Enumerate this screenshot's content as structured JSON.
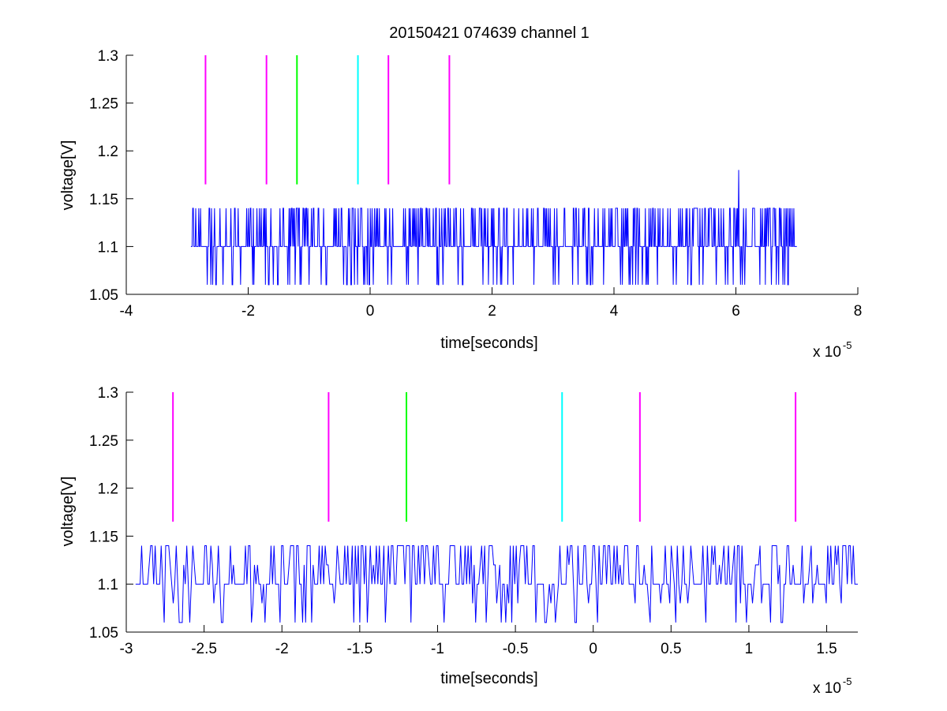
{
  "figure_title": "20150421 074639 channel 1",
  "chart_data": [
    {
      "type": "line",
      "title": "20150421 074639 channel 1",
      "xlabel": "time[seconds]",
      "ylabel": "voltage[V]",
      "x_scale_label": "x 10",
      "x_scale_exponent": "-5",
      "xlim": [
        -4,
        8
      ],
      "ylim": [
        1.05,
        1.3
      ],
      "x_scale_factor": 1e-05,
      "xticks": [
        -4,
        -2,
        0,
        2,
        4,
        6,
        8
      ],
      "xtick_labels": [
        "-4",
        "-2",
        "0",
        "2",
        "4",
        "6",
        "8"
      ],
      "yticks": [
        1.05,
        1.1,
        1.15,
        1.2,
        1.25,
        1.3
      ],
      "ytick_labels": [
        "1.05",
        "1.1",
        "1.15",
        "1.2",
        "1.25",
        "1.3"
      ],
      "grid": false,
      "legend": "none",
      "signal": {
        "name": "voltage",
        "color": "#0000ff",
        "x_start": -2.94,
        "x_end": 7.0,
        "baseline": 1.1,
        "levels": [
          1.06,
          1.1,
          1.14
        ],
        "spike": {
          "x": 6.05,
          "y": 1.18
        }
      },
      "markers": [
        {
          "x": -2.7,
          "y0": 1.165,
          "y1": 1.3,
          "color": "#ff00ff"
        },
        {
          "x": -1.7,
          "y0": 1.165,
          "y1": 1.3,
          "color": "#ff00ff"
        },
        {
          "x": -1.2,
          "y0": 1.165,
          "y1": 1.3,
          "color": "#00ff00"
        },
        {
          "x": -0.2,
          "y0": 1.165,
          "y1": 1.3,
          "color": "#00ffff"
        },
        {
          "x": 0.3,
          "y0": 1.165,
          "y1": 1.3,
          "color": "#ff00ff"
        },
        {
          "x": 1.3,
          "y0": 1.165,
          "y1": 1.3,
          "color": "#ff00ff"
        }
      ]
    },
    {
      "type": "line",
      "title": "",
      "xlabel": "time[seconds]",
      "ylabel": "voltage[V]",
      "x_scale_label": "x 10",
      "x_scale_exponent": "-5",
      "xlim": [
        -3.0,
        1.7
      ],
      "ylim": [
        1.05,
        1.3
      ],
      "x_scale_factor": 1e-05,
      "xticks": [
        -3,
        -2.5,
        -2,
        -1.5,
        -1,
        -0.5,
        0,
        0.5,
        1,
        1.5
      ],
      "xtick_labels": [
        "-3",
        "-2.5",
        "-2",
        "-1.5",
        "-1",
        "-0.5",
        "0",
        "0.5",
        "1",
        "1.5"
      ],
      "yticks": [
        1.05,
        1.1,
        1.15,
        1.2,
        1.25,
        1.3
      ],
      "ytick_labels": [
        "1.05",
        "1.1",
        "1.15",
        "1.2",
        "1.25",
        "1.3"
      ],
      "grid": false,
      "legend": "none",
      "signal": {
        "name": "voltage",
        "color": "#0000ff",
        "x_start": -2.94,
        "x_end": 1.7,
        "baseline": 1.1,
        "levels": [
          1.06,
          1.08,
          1.1,
          1.12,
          1.14
        ]
      },
      "markers": [
        {
          "x": -2.7,
          "y0": 1.165,
          "y1": 1.3,
          "color": "#ff00ff"
        },
        {
          "x": -1.7,
          "y0": 1.165,
          "y1": 1.3,
          "color": "#ff00ff"
        },
        {
          "x": -1.2,
          "y0": 1.165,
          "y1": 1.3,
          "color": "#00ff00"
        },
        {
          "x": -0.2,
          "y0": 1.165,
          "y1": 1.3,
          "color": "#00ffff"
        },
        {
          "x": 0.3,
          "y0": 1.165,
          "y1": 1.3,
          "color": "#ff00ff"
        },
        {
          "x": 1.3,
          "y0": 1.165,
          "y1": 1.3,
          "color": "#ff00ff"
        }
      ]
    }
  ]
}
